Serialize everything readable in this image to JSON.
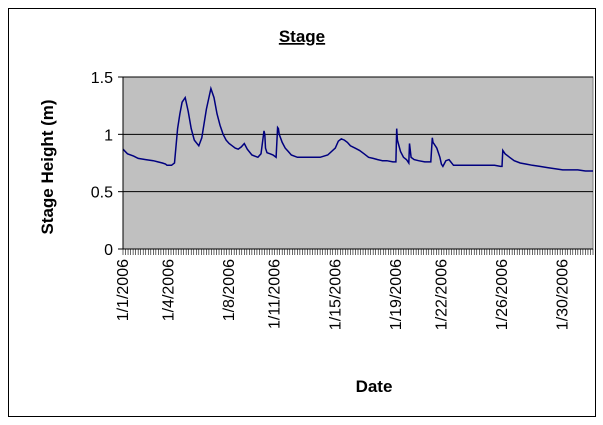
{
  "chart_data": {
    "type": "line",
    "title": "Stage",
    "xlabel": "Date",
    "ylabel": "Stage Height (m)",
    "x_tick_labels": [
      "1/1/2006",
      "1/4/2006",
      "1/8/2006",
      "1/11/2006",
      "1/15/2006",
      "1/19/2006",
      "1/22/2006",
      "1/26/2006",
      "1/30/2006"
    ],
    "x_tick_days": [
      1,
      4,
      8,
      11,
      15,
      19,
      22,
      26,
      30
    ],
    "xlim": [
      1,
      32
    ],
    "ylim": [
      0,
      1.5
    ],
    "y_ticks": [
      0,
      0.5,
      1,
      1.5
    ],
    "y_tick_labels": [
      "0",
      "0.5",
      "1",
      "1.5"
    ],
    "grid": "horizontal",
    "legend": "none",
    "series": [
      {
        "line_color": "#00007f",
        "x": [
          1.0,
          1.3,
          1.7,
          2.0,
          2.5,
          3.0,
          3.3,
          3.6,
          3.8,
          3.9,
          4.0,
          4.2,
          4.4,
          4.6,
          4.75,
          4.9,
          5.1,
          5.3,
          5.5,
          5.7,
          6.0,
          6.2,
          6.5,
          6.8,
          7.0,
          7.2,
          7.4,
          7.6,
          7.8,
          8.0,
          8.2,
          8.4,
          8.6,
          8.8,
          9.0,
          9.2,
          9.5,
          9.9,
          10.1,
          10.3,
          10.35,
          10.4,
          10.5,
          10.7,
          10.9,
          11.1,
          11.2,
          11.25,
          11.3,
          11.5,
          11.7,
          11.9,
          12.1,
          12.5,
          13.0,
          13.5,
          14.0,
          14.5,
          15.0,
          15.2,
          15.4,
          15.6,
          15.8,
          16.0,
          16.3,
          16.6,
          16.9,
          17.2,
          17.5,
          17.8,
          18.1,
          18.4,
          18.8,
          19.0,
          19.05,
          19.1,
          19.3,
          19.5,
          19.7,
          19.85,
          19.9,
          20.0,
          20.2,
          20.5,
          20.9,
          21.3,
          21.4,
          21.45,
          21.5,
          21.7,
          21.9,
          22.0,
          22.1,
          22.3,
          22.5,
          22.8,
          23.2,
          23.6,
          24.0,
          24.5,
          25.0,
          25.5,
          25.9,
          26.0,
          26.05,
          26.2,
          26.5,
          26.8,
          27.2,
          27.6,
          28.0,
          28.5,
          29.0,
          29.5,
          30.0,
          30.5,
          31.0,
          31.5,
          32.0
        ],
        "y": [
          0.87,
          0.83,
          0.81,
          0.79,
          0.78,
          0.77,
          0.76,
          0.75,
          0.74,
          0.73,
          0.73,
          0.73,
          0.75,
          1.05,
          1.18,
          1.28,
          1.32,
          1.2,
          1.05,
          0.95,
          0.9,
          0.97,
          1.22,
          1.4,
          1.32,
          1.18,
          1.08,
          1.0,
          0.95,
          0.92,
          0.9,
          0.88,
          0.87,
          0.89,
          0.92,
          0.87,
          0.82,
          0.8,
          0.83,
          1.03,
          1.0,
          0.88,
          0.84,
          0.83,
          0.82,
          0.8,
          1.06,
          1.05,
          1.0,
          0.93,
          0.88,
          0.85,
          0.82,
          0.8,
          0.8,
          0.8,
          0.8,
          0.82,
          0.88,
          0.94,
          0.96,
          0.95,
          0.93,
          0.9,
          0.88,
          0.86,
          0.83,
          0.8,
          0.79,
          0.78,
          0.77,
          0.77,
          0.76,
          0.76,
          1.05,
          0.95,
          0.85,
          0.8,
          0.78,
          0.75,
          0.92,
          0.8,
          0.78,
          0.77,
          0.76,
          0.76,
          0.97,
          0.93,
          0.92,
          0.88,
          0.8,
          0.74,
          0.72,
          0.77,
          0.78,
          0.73,
          0.73,
          0.73,
          0.73,
          0.73,
          0.73,
          0.73,
          0.72,
          0.72,
          0.86,
          0.83,
          0.8,
          0.77,
          0.75,
          0.74,
          0.73,
          0.72,
          0.71,
          0.7,
          0.69,
          0.69,
          0.69,
          0.68,
          0.68
        ]
      }
    ]
  },
  "colors": {
    "plot_background": "#c0c0c0",
    "line": "#00007f",
    "axis": "#000000"
  }
}
